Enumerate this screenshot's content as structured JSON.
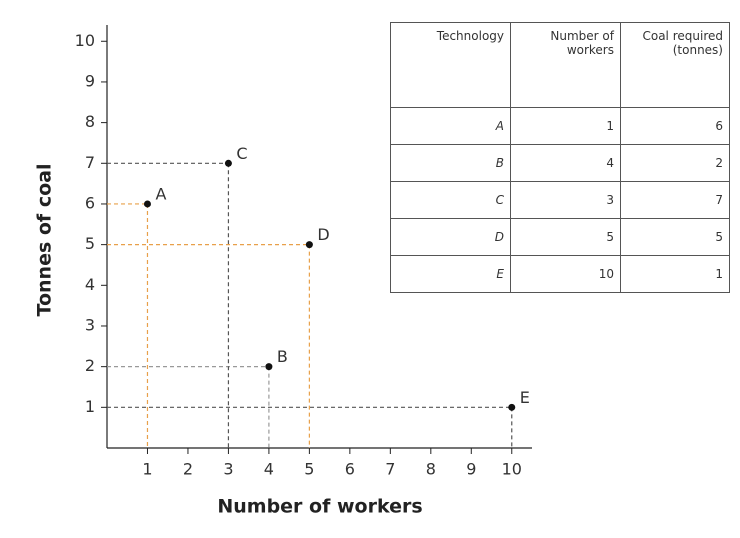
{
  "chart_data": {
    "type": "scatter",
    "x_label": "Number of workers",
    "y_label": "Tonnes of coal",
    "point_labels": [
      "A",
      "B",
      "C",
      "D",
      "E"
    ],
    "x": [
      1,
      4,
      3,
      5,
      10
    ],
    "values": [
      6,
      2,
      7,
      5,
      1
    ],
    "color": "#111111",
    "guide_colors": [
      "#e8a04a",
      "#999999",
      "#555555",
      "#e8a04a",
      "#555555"
    ],
    "xlim": [
      0,
      10.5
    ],
    "ylim": [
      0,
      10.4
    ],
    "xticks": [
      1,
      2,
      3,
      4,
      5,
      6,
      7,
      8,
      9,
      10
    ],
    "yticks": [
      1,
      2,
      3,
      4,
      5,
      6,
      7,
      8,
      9,
      10
    ],
    "table": {
      "header": [
        "Technology",
        "Number of workers",
        "Coal required (tonnes)"
      ],
      "rows": [
        [
          "A",
          "1",
          "6"
        ],
        [
          "B",
          "4",
          "2"
        ],
        [
          "C",
          "3",
          "7"
        ],
        [
          "D",
          "5",
          "5"
        ],
        [
          "E",
          "10",
          "1"
        ]
      ]
    }
  }
}
